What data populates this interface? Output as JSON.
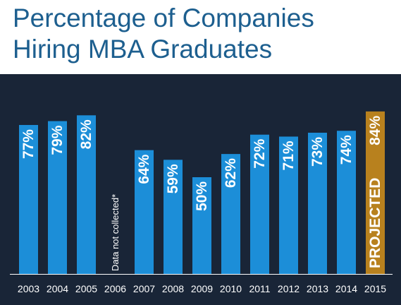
{
  "title_line1": "Percentage of Companies",
  "title_line2": "Hiring MBA Graduates",
  "colors": {
    "background": "#192537",
    "bar": "#1c8ed8",
    "projected_bar": "#b8811e",
    "title": "#1d5f8f",
    "text": "#ffffff"
  },
  "chart_data": {
    "type": "bar",
    "title": "Percentage of Companies Hiring MBA Graduates",
    "categories": [
      "2003",
      "2004",
      "2005",
      "2006",
      "2007",
      "2008",
      "2009",
      "2010",
      "2011",
      "2012",
      "2013",
      "2014",
      "2015"
    ],
    "values": [
      77,
      79,
      82,
      null,
      64,
      59,
      50,
      62,
      72,
      71,
      73,
      74,
      84
    ],
    "value_labels": [
      "77%",
      "79%",
      "82%",
      "",
      "64%",
      "59%",
      "50%",
      "62%",
      "72%",
      "71%",
      "73%",
      "74%",
      "84%"
    ],
    "missing_note": "Data not collected*",
    "projected_index": 12,
    "projected_label": "PROJECTED",
    "ylim": [
      0,
      100
    ],
    "grid": false,
    "xlabel": "",
    "ylabel": ""
  }
}
